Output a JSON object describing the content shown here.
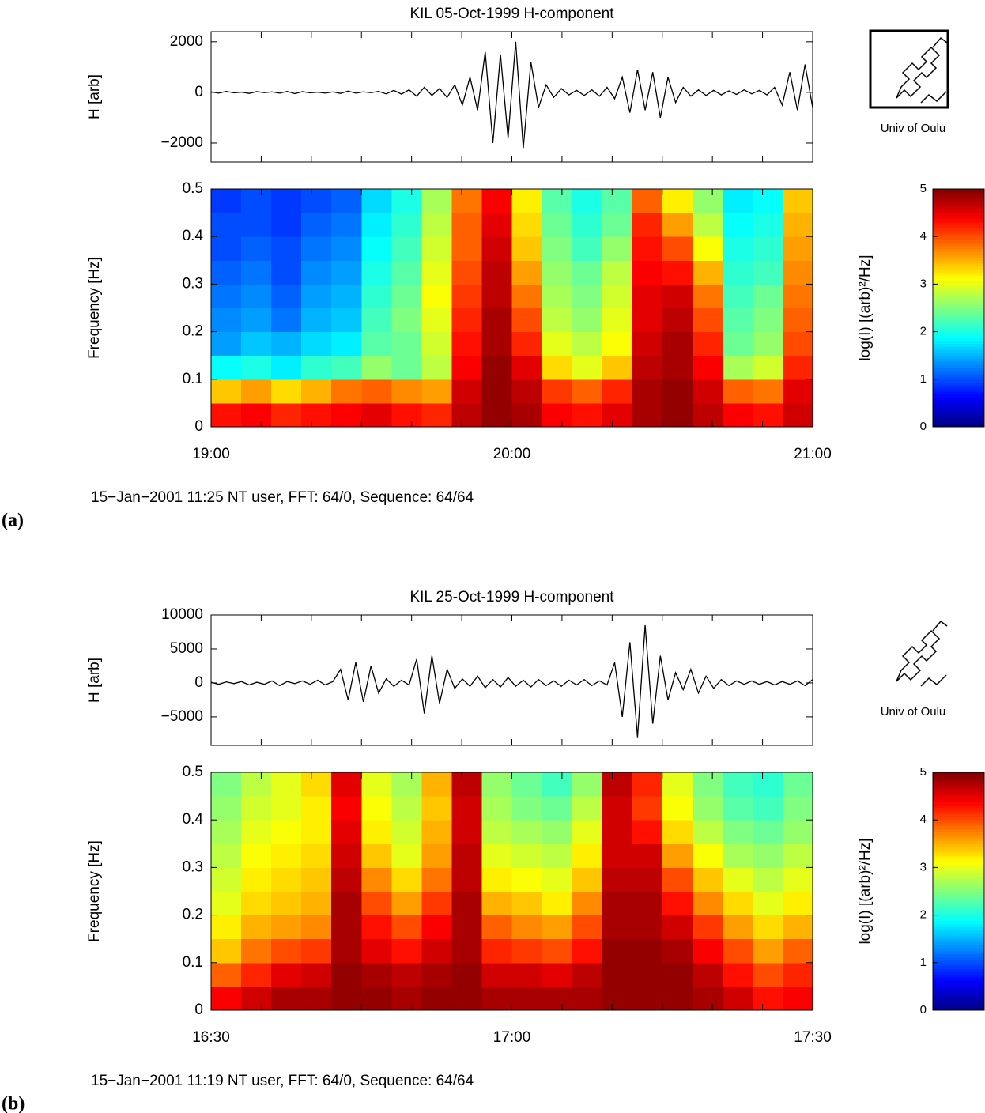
{
  "chart_data": [
    {
      "type": "line",
      "title": "KIL  05-Oct-1999  H-component",
      "ylabel": "H [arb]",
      "ylim": [
        -2750,
        2400
      ],
      "yticks": [
        {
          "value": -2000,
          "label": "−2000"
        },
        0,
        2000
      ],
      "color": "#000000",
      "values": [
        20,
        -30,
        40,
        -20,
        10,
        -40,
        30,
        -10,
        20,
        -30,
        40,
        -50,
        30,
        -20,
        10,
        -30,
        20,
        -40,
        50,
        -30,
        20,
        -10,
        40,
        -60,
        80,
        -70,
        100,
        -150,
        200,
        -120,
        150,
        -200,
        300,
        -500,
        600,
        -700,
        1600,
        -2000,
        1500,
        -1800,
        2000,
        -2200,
        1200,
        -600,
        300,
        -200,
        150,
        -100,
        80,
        -120,
        100,
        -150,
        200,
        -250,
        600,
        -800,
        900,
        -700,
        800,
        -1000,
        600,
        -400,
        200,
        -150,
        100,
        -120,
        80,
        -100,
        60,
        -80,
        100,
        -60,
        80,
        -100,
        200,
        -500,
        800,
        -700,
        1100,
        -600
      ]
    },
    {
      "type": "heatmap",
      "ylabel": "Frequency [Hz]",
      "ylim": [
        0,
        0.5
      ],
      "yticks": [
        0,
        0.1,
        0.2,
        0.3,
        0.4,
        0.5
      ],
      "xtick_labels": [
        "19:00",
        "20:00",
        "21:00"
      ],
      "colormap": "jet",
      "zlim": [
        0,
        5
      ],
      "zticks": [
        0,
        1,
        2,
        3,
        4,
        5
      ],
      "zlabel": "log(I) [(arb)²/Hz]",
      "values": [
        [
          4.3,
          4.4,
          4.2,
          4.3,
          4.4,
          4.5,
          4.3,
          4.2,
          4.7,
          4.9,
          4.8,
          4.4,
          4.3,
          4.5,
          4.8,
          4.9,
          4.7,
          4.4,
          4.3,
          4.6
        ],
        [
          3.4,
          3.6,
          3.3,
          3.5,
          3.8,
          3.9,
          3.7,
          3.6,
          4.6,
          4.9,
          4.7,
          4.1,
          3.9,
          4.2,
          4.8,
          4.9,
          4.6,
          3.9,
          3.8,
          4.5
        ],
        [
          1.9,
          2.0,
          1.8,
          2.1,
          2.2,
          2.6,
          2.4,
          2.8,
          4.4,
          4.9,
          4.5,
          3.3,
          3.0,
          3.4,
          4.7,
          4.8,
          4.4,
          2.7,
          2.9,
          4.2
        ],
        [
          1.4,
          1.6,
          1.5,
          1.7,
          1.8,
          2.3,
          2.4,
          2.9,
          4.3,
          4.8,
          4.2,
          3.0,
          2.8,
          3.1,
          4.6,
          4.8,
          4.2,
          2.4,
          2.6,
          4.0
        ],
        [
          1.3,
          1.4,
          1.2,
          1.5,
          1.6,
          2.2,
          2.5,
          3.0,
          4.2,
          4.8,
          4.0,
          2.8,
          2.6,
          3.0,
          4.5,
          4.7,
          4.0,
          2.3,
          2.5,
          3.9
        ],
        [
          1.2,
          1.3,
          1.1,
          1.4,
          1.5,
          2.1,
          2.4,
          3.1,
          4.1,
          4.7,
          3.8,
          2.7,
          2.5,
          2.9,
          4.5,
          4.6,
          3.8,
          2.2,
          2.4,
          3.8
        ],
        [
          1.1,
          1.2,
          1.0,
          1.3,
          1.4,
          2.0,
          2.3,
          3.0,
          4.0,
          4.7,
          3.6,
          2.6,
          2.4,
          2.8,
          4.4,
          4.3,
          3.5,
          2.1,
          2.2,
          3.7
        ],
        [
          1.0,
          1.1,
          1.0,
          1.2,
          1.3,
          1.9,
          2.2,
          2.9,
          3.9,
          4.6,
          3.4,
          2.5,
          2.2,
          2.6,
          4.3,
          4.0,
          3.1,
          2.0,
          2.1,
          3.6
        ],
        [
          1.0,
          1.0,
          0.9,
          1.1,
          1.2,
          1.8,
          2.1,
          2.8,
          3.9,
          4.5,
          3.3,
          2.4,
          2.1,
          2.4,
          4.2,
          3.6,
          2.8,
          1.9,
          2.0,
          3.5
        ],
        [
          0.9,
          1.0,
          0.9,
          1.0,
          1.1,
          1.7,
          2.0,
          2.7,
          3.8,
          4.4,
          3.2,
          2.3,
          2.0,
          2.3,
          3.9,
          3.2,
          2.6,
          1.8,
          1.9,
          3.4
        ]
      ]
    },
    {
      "type": "line",
      "title": "KIL  25-Oct-1999  H-component",
      "ylabel": "H [arb]",
      "ylim": [
        -9200,
        10000
      ],
      "yticks": [
        {
          "value": -5000,
          "label": "−5000"
        },
        0,
        5000,
        10000
      ],
      "color": "#000000",
      "values": [
        100,
        -200,
        150,
        -100,
        200,
        -300,
        100,
        -200,
        300,
        -400,
        200,
        -100,
        300,
        -200,
        400,
        -300,
        200,
        2000,
        -2500,
        3000,
        -2800,
        2500,
        -1500,
        600,
        -500,
        400,
        -300,
        3500,
        -4500,
        4000,
        -3000,
        2000,
        -800,
        600,
        -500,
        1000,
        -700,
        500,
        -600,
        800,
        -500,
        400,
        -600,
        500,
        -400,
        300,
        -500,
        400,
        -300,
        500,
        -400,
        300,
        -300,
        3000,
        -5000,
        6000,
        -8000,
        8500,
        -6000,
        4000,
        -2500,
        1500,
        -1000,
        2000,
        -1500,
        1000,
        -800,
        500,
        -400,
        300,
        -200,
        300,
        -200,
        200,
        -300,
        200,
        -200,
        300,
        -400,
        500
      ]
    },
    {
      "type": "heatmap",
      "ylabel": "Frequency [Hz]",
      "ylim": [
        0,
        0.5
      ],
      "yticks": [
        0,
        0.1,
        0.2,
        0.3,
        0.4,
        0.5
      ],
      "xtick_labels": [
        "16:30",
        "17:00",
        "17:30"
      ],
      "colormap": "jet",
      "zlim": [
        0,
        5
      ],
      "zticks": [
        0,
        1,
        2,
        3,
        4,
        5
      ],
      "zlabel": "log(I) [(arb)²/Hz]",
      "values": [
        [
          4.4,
          4.6,
          4.8,
          4.8,
          4.9,
          4.9,
          4.8,
          4.9,
          4.9,
          4.8,
          4.8,
          4.8,
          4.8,
          4.9,
          4.9,
          4.9,
          4.8,
          4.6,
          4.3,
          4.4
        ],
        [
          3.9,
          4.2,
          4.5,
          4.6,
          4.9,
          4.8,
          4.7,
          4.8,
          4.9,
          4.6,
          4.6,
          4.5,
          4.7,
          4.9,
          4.9,
          4.9,
          4.7,
          4.3,
          4.0,
          4.2
        ],
        [
          3.4,
          3.8,
          4.0,
          4.1,
          4.8,
          4.5,
          4.3,
          4.6,
          4.8,
          4.2,
          4.1,
          4.0,
          4.3,
          4.9,
          4.9,
          4.8,
          4.4,
          4.0,
          3.6,
          3.9
        ],
        [
          3.2,
          3.5,
          3.6,
          3.7,
          4.8,
          4.3,
          4.0,
          4.4,
          4.8,
          3.9,
          3.7,
          3.6,
          4.0,
          4.8,
          4.8,
          4.6,
          4.1,
          3.6,
          3.3,
          3.5
        ],
        [
          3.0,
          3.3,
          3.4,
          3.5,
          4.8,
          4.0,
          3.6,
          4.1,
          4.8,
          3.5,
          3.4,
          3.2,
          3.7,
          4.8,
          4.8,
          4.3,
          3.7,
          3.3,
          3.0,
          3.2
        ],
        [
          2.9,
          3.2,
          3.3,
          3.4,
          4.7,
          3.7,
          3.3,
          3.8,
          4.7,
          3.2,
          3.1,
          3.0,
          3.4,
          4.7,
          4.7,
          4.0,
          3.4,
          3.0,
          2.8,
          3.0
        ],
        [
          2.8,
          3.1,
          3.2,
          3.3,
          4.6,
          3.4,
          3.0,
          3.6,
          4.7,
          3.0,
          2.9,
          2.8,
          3.2,
          4.6,
          4.6,
          3.6,
          3.1,
          2.7,
          2.6,
          2.8
        ],
        [
          2.7,
          3.0,
          3.1,
          3.2,
          4.5,
          3.2,
          2.9,
          3.5,
          4.6,
          2.8,
          2.7,
          2.6,
          3.0,
          4.6,
          4.3,
          3.3,
          2.8,
          2.5,
          2.4,
          2.6
        ],
        [
          2.6,
          2.9,
          3.0,
          3.2,
          4.4,
          3.1,
          2.8,
          3.4,
          4.6,
          2.7,
          2.5,
          2.4,
          2.8,
          4.6,
          4.1,
          3.1,
          2.6,
          2.3,
          2.2,
          2.5
        ],
        [
          2.5,
          2.8,
          3.0,
          3.3,
          4.5,
          3.0,
          2.7,
          3.5,
          4.7,
          2.6,
          2.4,
          2.2,
          2.6,
          4.7,
          4.2,
          3.0,
          2.5,
          2.2,
          2.1,
          2.4
        ]
      ]
    }
  ],
  "panels": [
    {
      "label": "(a)",
      "footer": "15−Jan−2001 11:25 NT user, FFT: 64/0, Sequence: 64/64",
      "logo_text": "Univ of Oulu"
    },
    {
      "label": "(b)",
      "footer": "15−Jan−2001 11:19 NT user, FFT: 64/0, Sequence: 64/64",
      "logo_text": "Univ of Oulu"
    }
  ]
}
